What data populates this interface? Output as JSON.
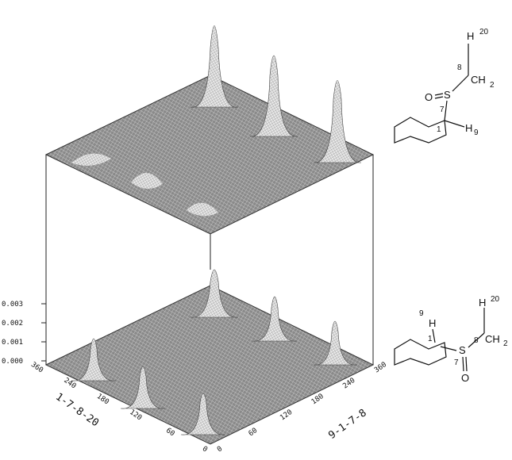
{
  "z_axis": {
    "ticks": [
      "0.003",
      "0.002",
      "0.001",
      "0.000"
    ]
  },
  "x_axis": {
    "label": "1-7-8-20",
    "ticks": [
      "360",
      "240",
      "180",
      "120",
      "60",
      "0"
    ]
  },
  "y_axis": {
    "label": "9-1-7-8",
    "ticks": [
      "0",
      "60",
      "120",
      "180",
      "240",
      "360"
    ]
  },
  "structures": [
    {
      "labels": [
        "H",
        "20",
        "8",
        "CH",
        "2",
        "O",
        "S",
        "7",
        "1",
        "H",
        "9"
      ]
    },
    {
      "labels": [
        "9",
        "H",
        "1",
        "S",
        "7",
        "O",
        "8",
        "H",
        "20",
        "CH",
        "2"
      ]
    }
  ]
}
